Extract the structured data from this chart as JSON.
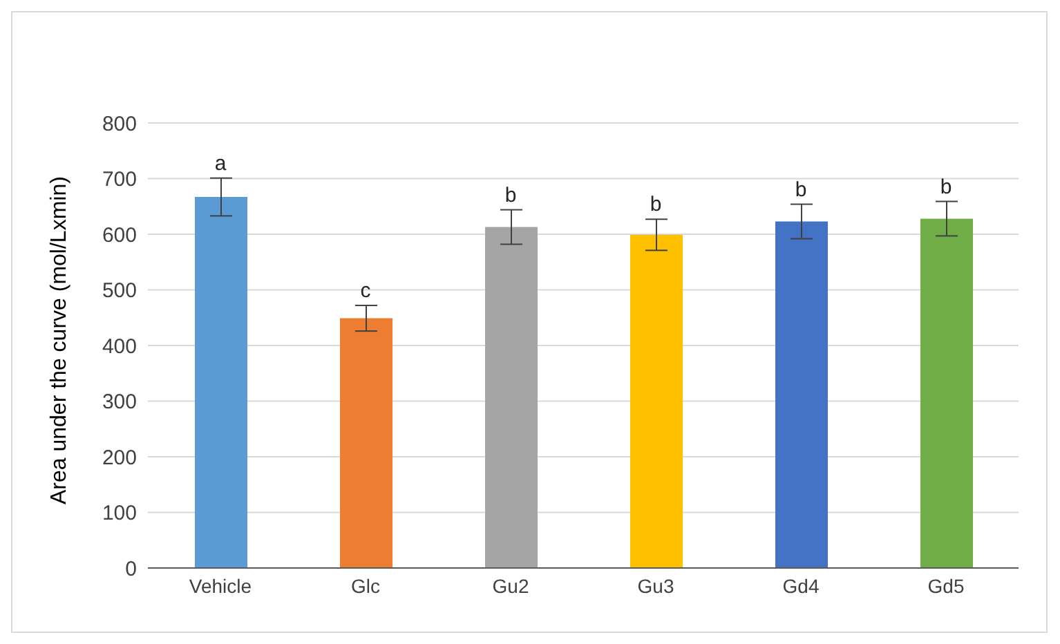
{
  "chart_data": {
    "type": "bar",
    "ylabel": "Area under the curve (mol/Lxmin)",
    "categories": [
      "Vehicle",
      "Glc",
      "Gu2",
      "Gu3",
      "Gd4",
      "Gd5"
    ],
    "values": [
      667,
      449,
      613,
      599,
      623,
      628
    ],
    "errors": [
      34,
      23,
      31,
      28,
      31,
      31
    ],
    "colors": [
      "#5b9bd5",
      "#ed7d31",
      "#a5a5a5",
      "#ffc000",
      "#4472c4",
      "#70ad47"
    ],
    "ylim": [
      0,
      800
    ],
    "yticks": [
      0,
      100,
      200,
      300,
      400,
      500,
      600,
      700,
      800
    ],
    "grid": "y",
    "annotations": [
      {
        "text": "a",
        "x": "Vehicle",
        "y": 701
      },
      {
        "text": "c",
        "x": "Glc",
        "y": 472
      },
      {
        "text": "b",
        "x": "Gu2",
        "y": 644
      },
      {
        "text": "b",
        "x": "Gu3",
        "y": 627
      },
      {
        "text": "b",
        "x": "Gd4",
        "y": 654
      },
      {
        "text": "b",
        "x": "Gd5",
        "y": 659
      }
    ]
  }
}
